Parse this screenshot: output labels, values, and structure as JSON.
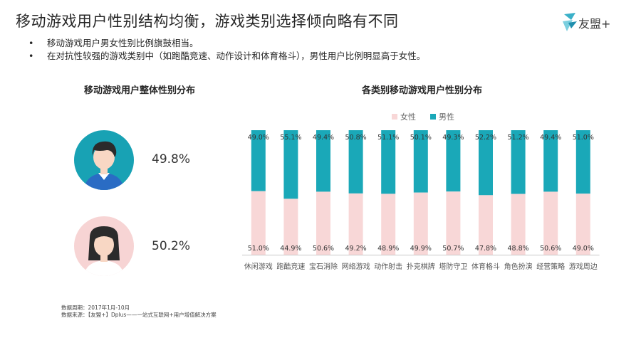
{
  "header": {
    "title": "移动游戏用户性别结构均衡，游戏类别选择倾向略有不同",
    "logo_text": "友盟+"
  },
  "bullets": [
    "移动游戏用户男女性别比例旗鼓相当。",
    "在对抗性较强的游戏类别中（如跑酷竞速、动作设计和体育格斗），男性用户比例明显高于女性。"
  ],
  "left_panel": {
    "title": "移动游戏用户整体性别分布",
    "male_pct": "49.8%",
    "female_pct": "50.2%"
  },
  "colors": {
    "female": "#f8d7d7",
    "male": "#1aa8b8",
    "male_hair": "#2b2b2b",
    "skin": "#f8d7c4",
    "male_shirt": "#2a6cc4",
    "male_circle": "#18a2b4",
    "female_circle": "#f7d4d4"
  },
  "footnote": {
    "line1": "数据周期：2017年1月-10月",
    "line2": "数据来源：【友盟+】Dplus——一站式互联网+用户增值解决方案"
  },
  "chart_data": {
    "type": "bar",
    "stacked": true,
    "title": "各类别移动游戏用户性别分布",
    "categories": [
      "休闲游戏",
      "跑酷竞速",
      "宝石消除",
      "网络游戏",
      "动作射击",
      "扑克棋牌",
      "塔防守卫",
      "体育格斗",
      "角色扮演",
      "经营策略",
      "游戏周边"
    ],
    "series": [
      {
        "name": "女性",
        "values": [
          51.0,
          44.9,
          50.6,
          49.2,
          48.9,
          49.9,
          50.7,
          47.8,
          48.8,
          50.6,
          49.0
        ],
        "labels": [
          "51.0%",
          "44.9%",
          "50.6%",
          "49.2%",
          "48.9%",
          "49.9%",
          "50.7%",
          "47.8%",
          "48.8%",
          "50.6%",
          "49.0%"
        ]
      },
      {
        "name": "男性",
        "values": [
          49.0,
          55.1,
          49.4,
          50.8,
          51.1,
          50.1,
          49.3,
          52.2,
          51.2,
          49.4,
          51.0
        ],
        "labels": [
          "49.0%",
          "55.1%",
          "49.4%",
          "50.8%",
          "51.1%",
          "50.1%",
          "49.3%",
          "52.2%",
          "51.2%",
          "49.4%",
          "51.0%"
        ]
      }
    ],
    "ylim": [
      0,
      100
    ],
    "legend": "top-center",
    "grid": false
  }
}
